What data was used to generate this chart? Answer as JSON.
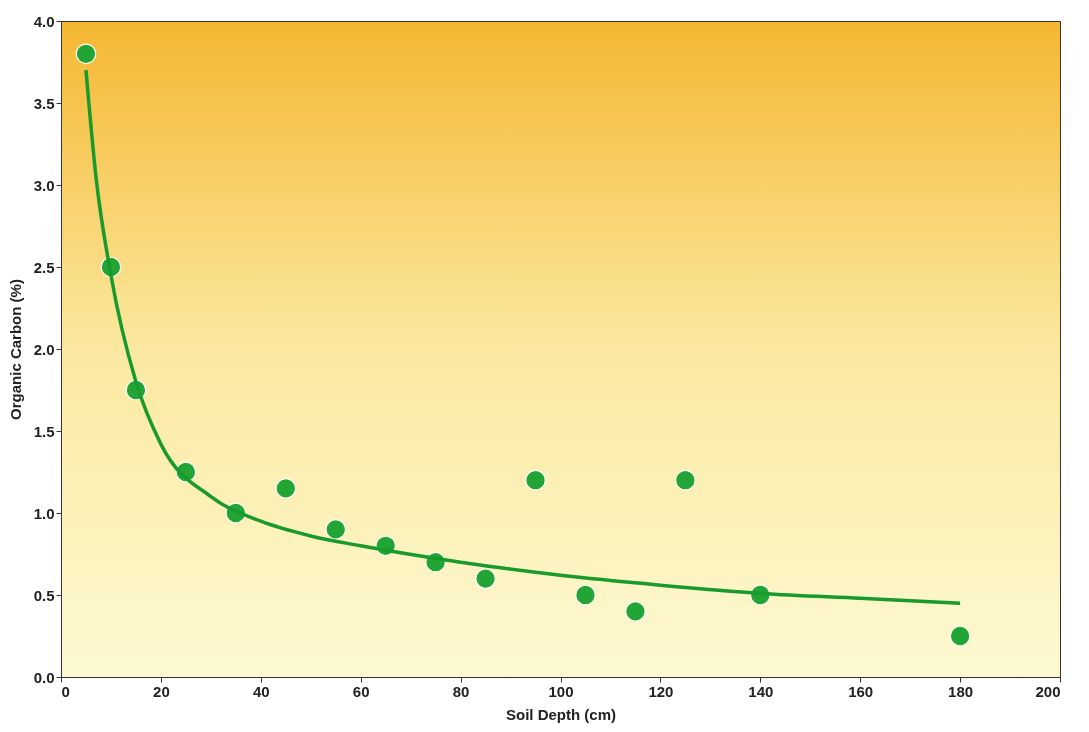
{
  "chart_data": {
    "type": "scatter",
    "xlabel": "Soil Depth (cm)",
    "ylabel": "Organic Carbon (%)",
    "xlim": [
      0,
      200
    ],
    "xticks": [
      0,
      20,
      40,
      60,
      80,
      100,
      120,
      140,
      160,
      180,
      200
    ],
    "ylim": [
      0,
      4.0
    ],
    "yticks": [
      {
        "value": 0,
        "label": "0.0"
      },
      {
        "value": 0.5,
        "label": "0.5"
      },
      {
        "value": 1,
        "label": "1.0"
      },
      {
        "value": 1.5,
        "label": "1.5"
      },
      {
        "value": 2,
        "label": "2.0"
      },
      {
        "value": 2.5,
        "label": "2.5"
      },
      {
        "value": 3,
        "label": "3.0"
      },
      {
        "value": 3.5,
        "label": "3.5"
      },
      {
        "value": 4,
        "label": "4.0"
      }
    ],
    "grid": false,
    "series": [
      {
        "color": "#22a535",
        "marker": "circle",
        "x": [
          5,
          10,
          15,
          25,
          35,
          45,
          55,
          65,
          75,
          85,
          95,
          105,
          115,
          125,
          140,
          180
        ],
        "values": [
          3.8,
          2.5,
          1.75,
          1.25,
          1.0,
          1.15,
          0.9,
          0.8,
          0.7,
          0.6,
          1.2,
          0.5,
          0.4,
          1.2,
          0.5,
          0.25
        ]
      },
      {
        "type": "line",
        "color": "#199a2c",
        "line_style": "solid",
        "x": [
          5,
          7,
          10,
          15,
          20,
          30,
          40,
          50,
          60,
          80,
          100,
          120,
          140,
          160,
          180
        ],
        "values": [
          3.7,
          3.05,
          2.45,
          1.8,
          1.42,
          1.1,
          0.95,
          0.86,
          0.8,
          0.7,
          0.62,
          0.56,
          0.51,
          0.48,
          0.45
        ]
      }
    ]
  }
}
